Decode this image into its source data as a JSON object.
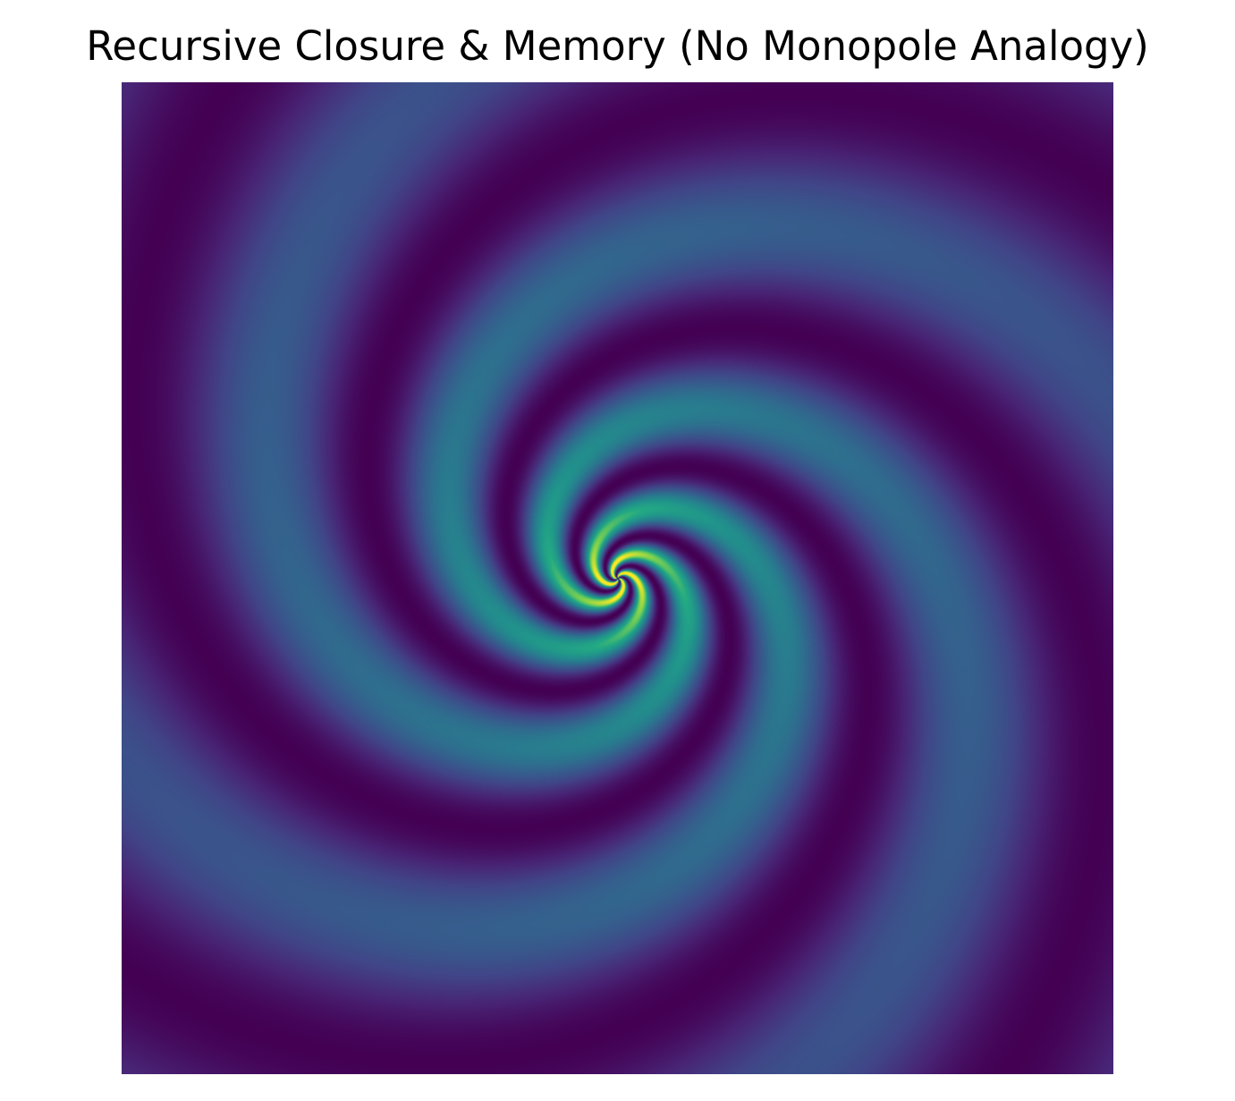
{
  "chart_data": {
    "type": "heatmap",
    "title": "Recursive Closure & Memory (No Monopole Analogy)",
    "xlabel": "",
    "ylabel": "",
    "axes_visible": false,
    "grid": false,
    "colormap": "viridis",
    "field": {
      "description_shape": "spiral",
      "arms": 4,
      "rotation": "counterclockwise-in",
      "twist": 3.0,
      "peak_at_center": true,
      "value_range": [
        0,
        1
      ]
    },
    "colors": {
      "low": "#440154",
      "mid": "#21918c",
      "high": "#fde725"
    }
  }
}
